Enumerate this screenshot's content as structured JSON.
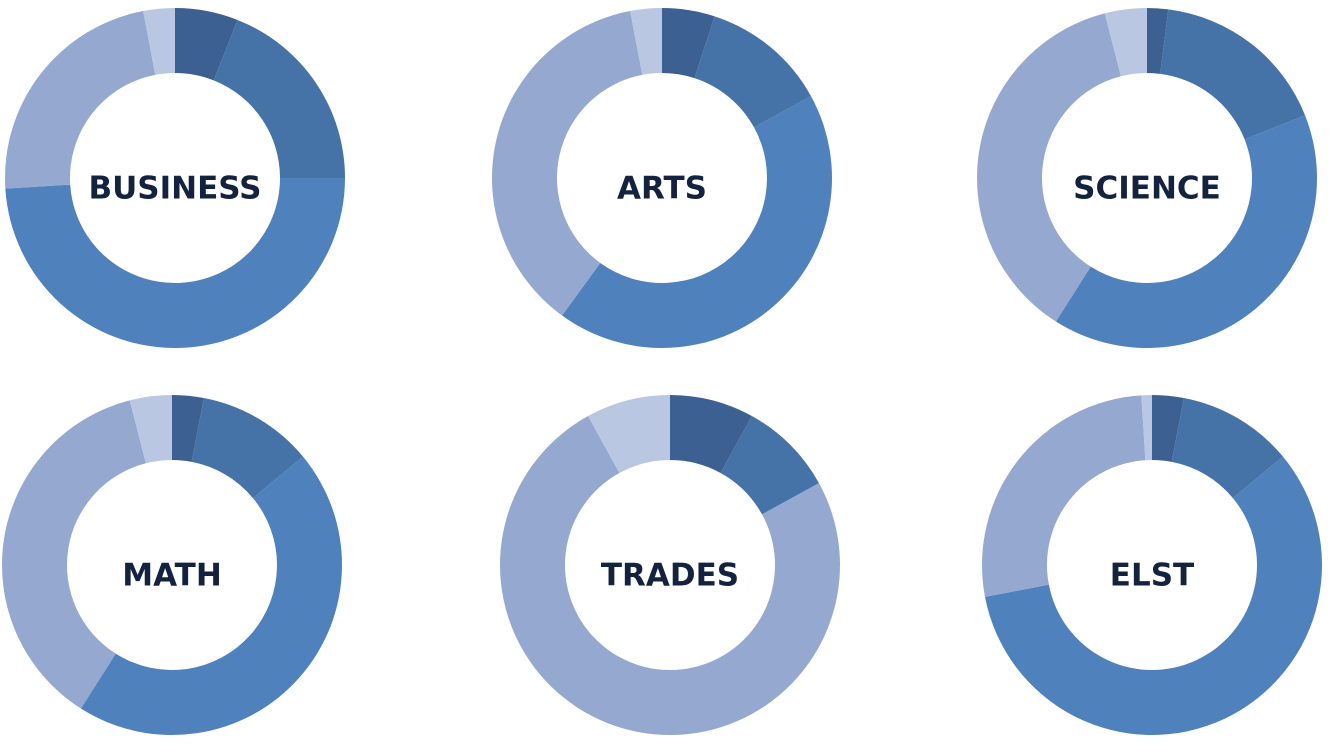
{
  "chart_data": [
    {
      "type": "pie",
      "title": "BUSINESS",
      "values": [
        6,
        19,
        49,
        23,
        3
      ],
      "colors": [
        "#3b6091",
        "#4573a8",
        "#4f81bd",
        "#95a9d0",
        "#b9c7e2"
      ]
    },
    {
      "type": "pie",
      "title": "ARTS",
      "values": [
        5,
        12,
        43,
        37,
        3
      ],
      "colors": [
        "#3b6091",
        "#4573a8",
        "#4f81bd",
        "#95a9d0",
        "#b9c7e2"
      ]
    },
    {
      "type": "pie",
      "title": "SCIENCE",
      "values": [
        2,
        17,
        40,
        37,
        4
      ],
      "colors": [
        "#3b6091",
        "#4573a8",
        "#4f81bd",
        "#95a9d0",
        "#b9c7e2"
      ]
    },
    {
      "type": "pie",
      "title": "MATH",
      "values": [
        3,
        11,
        45,
        37,
        4
      ],
      "colors": [
        "#3b6091",
        "#4573a8",
        "#4f81bd",
        "#95a9d0",
        "#b9c7e2"
      ]
    },
    {
      "type": "pie",
      "title": "TRADES",
      "values": [
        8,
        9,
        0,
        75,
        8
      ],
      "colors": [
        "#3b6091",
        "#4573a8",
        "#4f81bd",
        "#95a9d0",
        "#b9c7e2"
      ]
    },
    {
      "type": "pie",
      "title": "ELST",
      "values": [
        3,
        11,
        58,
        27,
        1
      ],
      "colors": [
        "#3b6091",
        "#4573a8",
        "#4f81bd",
        "#95a9d0",
        "#b9c7e2"
      ]
    }
  ]
}
